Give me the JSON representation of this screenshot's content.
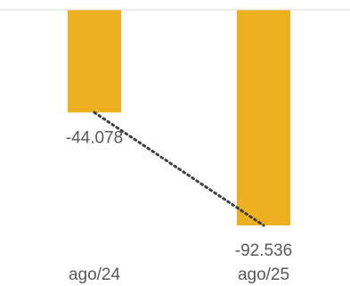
{
  "chart_data": {
    "type": "bar",
    "categories": [
      "ago/24",
      "ago/25"
    ],
    "values": [
      -44078,
      -92536
    ],
    "value_labels": [
      "-44.078",
      "-92.536"
    ],
    "ylim": [
      -100000,
      0
    ],
    "bar_color": "#EDB120",
    "axis_color": "#D9D9D9",
    "text_color": "#595959",
    "trendline": {
      "type": "linear",
      "style": "dotted",
      "color": "#404040"
    },
    "grid": false,
    "legend": "none"
  }
}
